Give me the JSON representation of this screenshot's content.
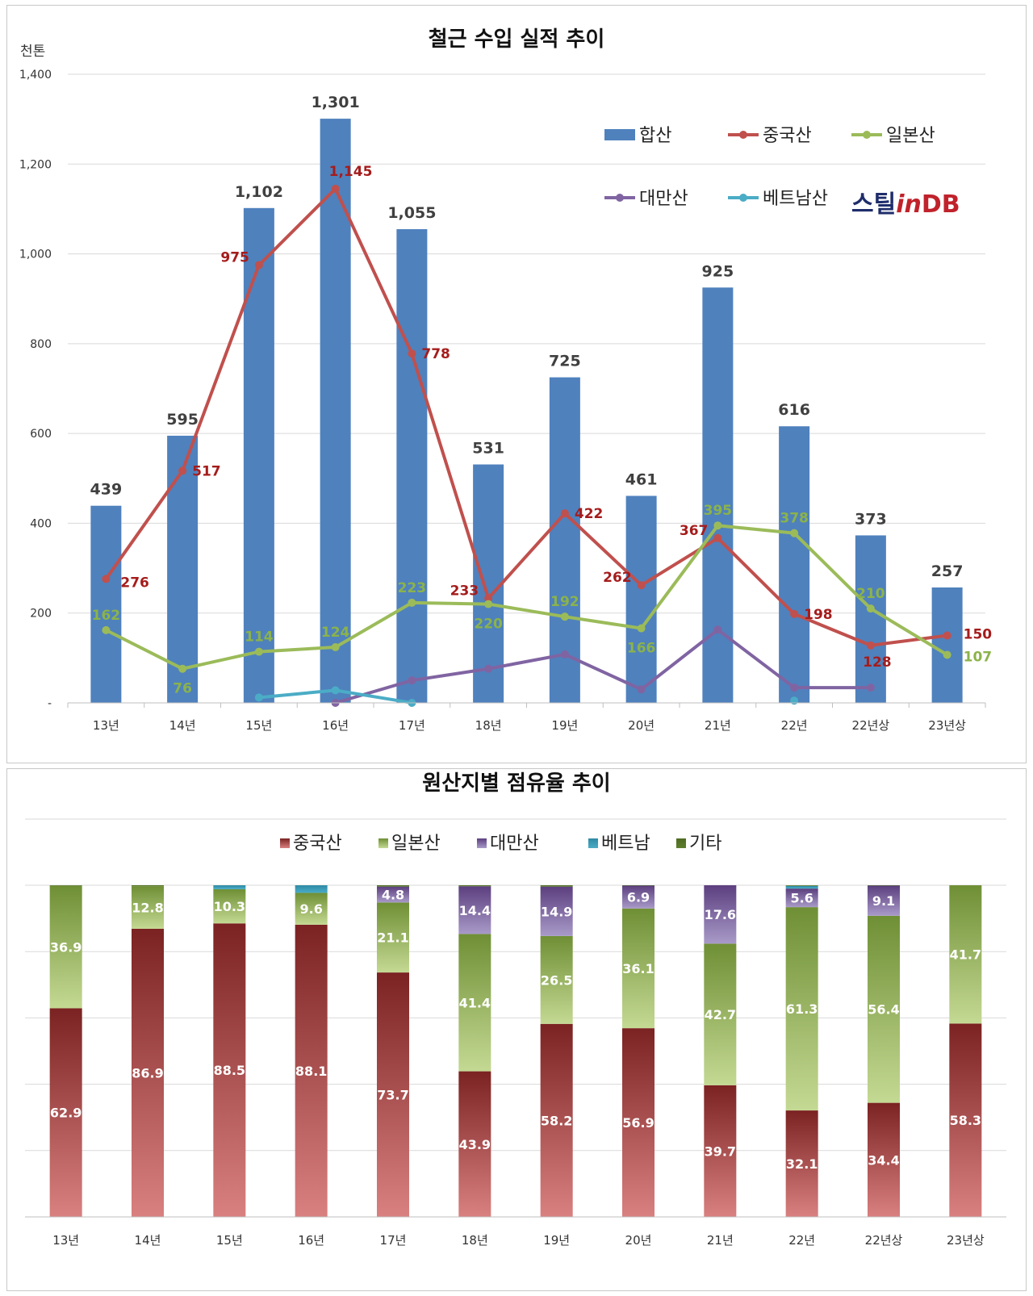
{
  "colors": {
    "total_bar": "#4f81bd",
    "china": "#c0504d",
    "japan": "#9bbb59",
    "taiwan": "#8064a2",
    "vietnam": "#4bacc6",
    "other": "#5a7a2a",
    "china_label": "#a51c1c",
    "japan_label": "#8bb34a",
    "logo_navy": "#1f2d6b",
    "logo_red": "#c0222b"
  },
  "logo": {
    "left": "스틸",
    "mid": "in",
    "right": "DB"
  },
  "chart_data": [
    {
      "type": "bar+line",
      "title": "철근 수입 실적 추이",
      "ylabel": "천톤",
      "ylim": [
        0,
        1400
      ],
      "yticks": [
        0,
        200,
        400,
        600,
        800,
        1000,
        1200,
        1400
      ],
      "ytick_labels": [
        "-",
        "200",
        "400",
        "600",
        "800",
        "1,000",
        "1,200",
        "1,400"
      ],
      "categories": [
        "13년",
        "14년",
        "15년",
        "16년",
        "17년",
        "18년",
        "19년",
        "20년",
        "21년",
        "22년",
        "22년상",
        "23년상"
      ],
      "bars": {
        "name": "합산",
        "values": [
          439,
          595,
          1102,
          1301,
          1055,
          531,
          725,
          461,
          925,
          616,
          373,
          257
        ],
        "labels": [
          "439",
          "595",
          "1,102",
          "1,301",
          "1,055",
          "531",
          "725",
          "461",
          "925",
          "616",
          "373",
          "257"
        ]
      },
      "series": [
        {
          "name": "중국산",
          "values": [
            276,
            517,
            975,
            1145,
            778,
            233,
            422,
            262,
            367,
            198,
            128,
            150
          ],
          "labels": [
            "276",
            "517",
            "975",
            "1,145",
            "778",
            "233",
            "422",
            "262",
            "367",
            "198",
            "128",
            "150"
          ]
        },
        {
          "name": "일본산",
          "values": [
            162,
            76,
            114,
            124,
            223,
            220,
            192,
            166,
            395,
            378,
            210,
            107
          ],
          "labels": [
            "162",
            "76",
            "114",
            "124",
            "223",
            "220",
            "192",
            "166",
            "395",
            "378",
            "210",
            "107"
          ]
        },
        {
          "name": "대만산",
          "values": [
            null,
            null,
            null,
            0,
            50,
            76,
            108,
            30,
            163,
            34,
            34,
            null
          ]
        },
        {
          "name": "베트남산",
          "values": [
            null,
            null,
            12,
            28,
            0,
            null,
            null,
            null,
            null,
            5,
            null,
            null
          ]
        }
      ],
      "legend": [
        "합산",
        "중국산",
        "일본산",
        "대만산",
        "베트남산"
      ],
      "legend_position": "top-right",
      "grid": true
    },
    {
      "type": "stacked_bar_100",
      "title": "원산지별 점유율 추이",
      "ylim": [
        0,
        100
      ],
      "grid": true,
      "categories": [
        "13년",
        "14년",
        "15년",
        "16년",
        "17년",
        "18년",
        "19년",
        "20년",
        "21년",
        "22년",
        "22년상",
        "23년상"
      ],
      "series": [
        {
          "name": "중국산",
          "values": [
            62.9,
            86.9,
            88.5,
            88.1,
            73.7,
            43.9,
            58.2,
            56.9,
            39.7,
            32.1,
            34.4,
            58.3
          ]
        },
        {
          "name": "일본산",
          "values": [
            36.9,
            12.8,
            10.3,
            9.6,
            21.1,
            41.4,
            26.5,
            36.1,
            42.7,
            61.3,
            56.4,
            41.7
          ]
        },
        {
          "name": "대만산",
          "values": [
            0,
            0,
            0,
            0,
            4.8,
            14.4,
            14.9,
            6.9,
            17.6,
            5.6,
            9.1,
            0
          ]
        },
        {
          "name": "베트남",
          "values": [
            0,
            0,
            1.2,
            2.3,
            0,
            0,
            0,
            0,
            0,
            0.8,
            0,
            0
          ]
        },
        {
          "name": "기타",
          "values": [
            0.2,
            0.3,
            0,
            0,
            0.4,
            0.3,
            0.4,
            0.1,
            0,
            0.2,
            0.1,
            0
          ]
        }
      ],
      "labels": [
        [
          "62.9",
          "86.9",
          "88.5",
          "88.1",
          "73.7",
          "43.9",
          "58.2",
          "56.9",
          "39.7",
          "32.1",
          "34.4",
          "58.3"
        ],
        [
          "36.9",
          "12.8",
          "10.3",
          "9.6",
          "21.1",
          "41.4",
          "26.5",
          "36.1",
          "42.7",
          "61.3",
          "56.4",
          "41.7"
        ],
        [
          "",
          "",
          "",
          "",
          "4.8",
          "14.4",
          "14.9",
          "6.9",
          "17.6",
          "5.6",
          "9.1",
          ""
        ],
        [
          "",
          "",
          "",
          "",
          "",
          "",
          "",
          "",
          "",
          "",
          "",
          ""
        ],
        [
          "",
          "",
          "",
          "",
          "",
          "",
          "",
          "",
          "",
          "",
          "",
          ""
        ]
      ],
      "legend": [
        "중국산",
        "일본산",
        "대만산",
        "베트남",
        "기타"
      ],
      "legend_position": "top"
    }
  ]
}
